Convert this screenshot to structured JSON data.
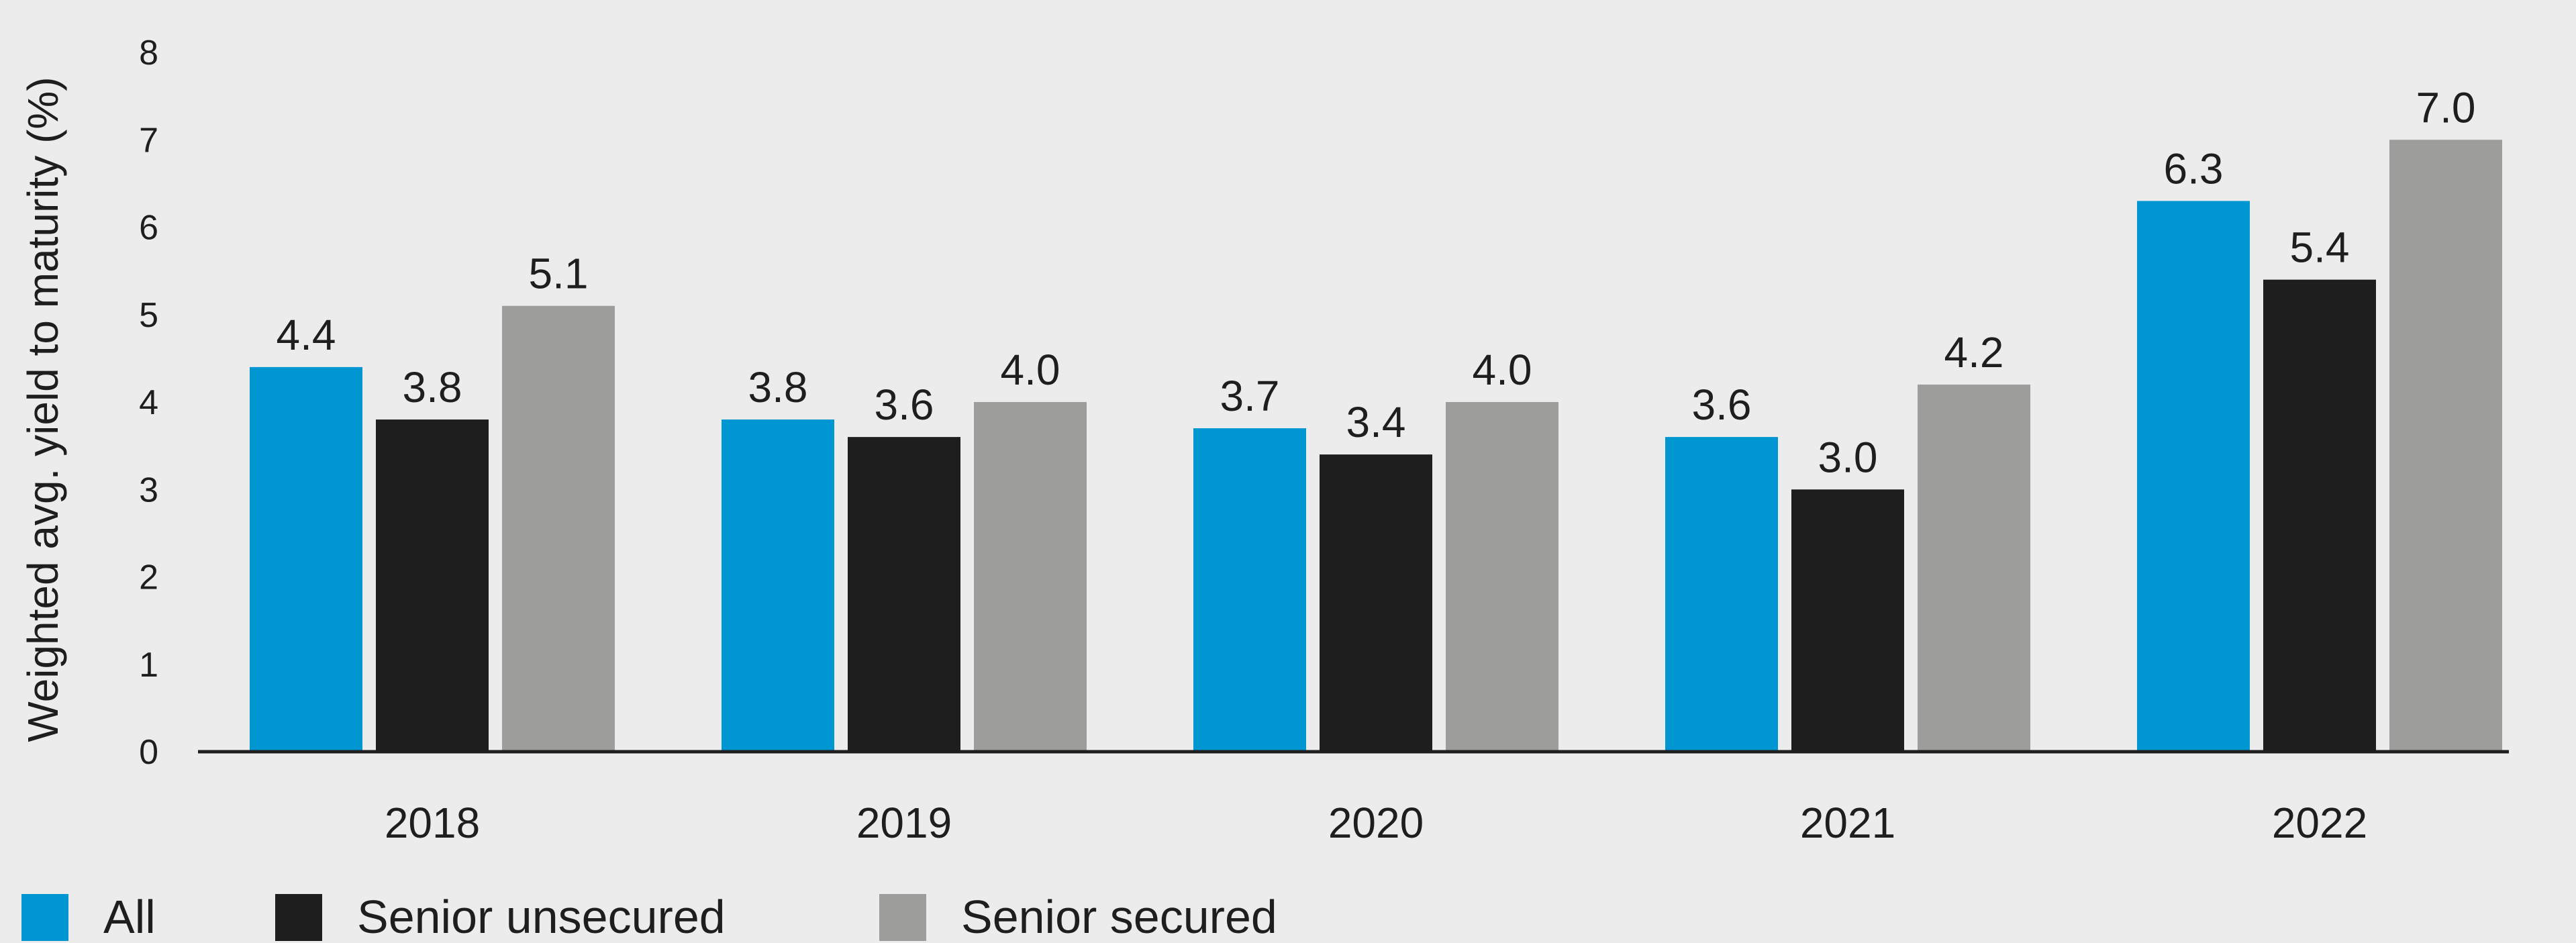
{
  "chart_data": {
    "type": "bar",
    "title": "",
    "xlabel": "",
    "ylabel": "Weighted avg. yield to maturity (%)",
    "ylim": [
      0,
      8
    ],
    "yticks": [
      0,
      1,
      2,
      3,
      4,
      5,
      6,
      7,
      8
    ],
    "grid": false,
    "legend_position": "bottom-left",
    "categories": [
      "2018",
      "2019",
      "2020",
      "2021",
      "2022"
    ],
    "series": [
      {
        "name": "All",
        "color": "#0096d2",
        "values": [
          4.4,
          3.8,
          3.7,
          3.6,
          6.3
        ],
        "labels": [
          "4.4",
          "3.8",
          "3.7",
          "3.6",
          "6.3"
        ]
      },
      {
        "name": "Senior unsecured",
        "color": "#1e1e1e",
        "values": [
          3.8,
          3.6,
          3.4,
          3.0,
          5.4
        ],
        "labels": [
          "3.8",
          "3.6",
          "3.4",
          "3.0",
          "5.4"
        ]
      },
      {
        "name": "Senior secured",
        "color": "#9d9d9b",
        "values": [
          5.1,
          4.0,
          4.0,
          4.2,
          7.0
        ],
        "labels": [
          "5.1",
          "4.0",
          "4.0",
          "4.2",
          "7.0"
        ]
      }
    ]
  }
}
